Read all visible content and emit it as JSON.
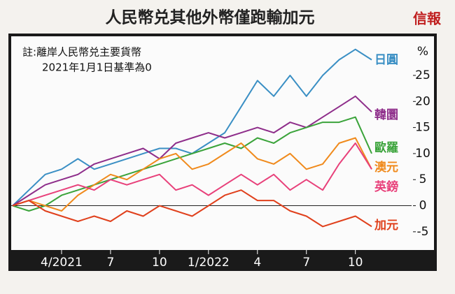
{
  "chart_data": {
    "type": "line",
    "title": "人民幣兑其他外幣僅跑輸加元",
    "logo": "信報",
    "note": [
      "註:離岸人民幣兑主要貨幣",
      "2021年1月1日基準為0"
    ],
    "y_unit": "%",
    "x": [
      "2021-01",
      "2021-02",
      "2021-03",
      "2021-04",
      "2021-05",
      "2021-06",
      "2021-07",
      "2021-08",
      "2021-09",
      "2021-10",
      "2021-11",
      "2021-12",
      "2022-01",
      "2022-02",
      "2022-03",
      "2022-04",
      "2022-05",
      "2022-06",
      "2022-07",
      "2022-08",
      "2022-09",
      "2022-10",
      "2022-11"
    ],
    "xticks": [
      {
        "value": "2021-04",
        "label": "4/2021"
      },
      {
        "value": "2021-07",
        "label": "7"
      },
      {
        "value": "2021-10",
        "label": "10"
      },
      {
        "value": "2022-01",
        "label": "1/2022"
      },
      {
        "value": "2022-04",
        "label": "4"
      },
      {
        "value": "2022-07",
        "label": "7"
      },
      {
        "value": "2022-10",
        "label": "10"
      }
    ],
    "ylim": [
      -8.5,
      32.5
    ],
    "yticks": [
      -5,
      0,
      5,
      10,
      15,
      20,
      25
    ],
    "series": [
      {
        "name": "日圓",
        "color": "#3a8fc4",
        "values": [
          0,
          3,
          6,
          7,
          9,
          7,
          8,
          9,
          10,
          11,
          11,
          10,
          12,
          14,
          19,
          24,
          21,
          25,
          21,
          25,
          28,
          30,
          28
        ]
      },
      {
        "name": "韓圜",
        "color": "#8e2d8a",
        "values": [
          0,
          2,
          4,
          5,
          6,
          8,
          9,
          10,
          11,
          9,
          12,
          13,
          14,
          13,
          14,
          15,
          14,
          16,
          15,
          17,
          19,
          21,
          18
        ]
      },
      {
        "name": "歐羅",
        "color": "#3aa33a",
        "values": [
          0,
          -1,
          0,
          2,
          3,
          4,
          5,
          6,
          7,
          8,
          9,
          10,
          11,
          12,
          11,
          13,
          12,
          14,
          15,
          16,
          16,
          17,
          10
        ]
      },
      {
        "name": "澳元",
        "color": "#f08a1c",
        "values": [
          0,
          1,
          0,
          -1,
          2,
          4,
          6,
          5,
          7,
          9,
          10,
          7,
          8,
          10,
          12,
          9,
          8,
          10,
          7,
          8,
          12,
          13,
          7
        ]
      },
      {
        "name": "英鎊",
        "color": "#e8407a",
        "values": [
          0,
          1,
          2,
          3,
          4,
          3,
          5,
          4,
          5,
          6,
          3,
          4,
          2,
          4,
          6,
          4,
          6,
          3,
          5,
          3,
          8,
          12,
          7
        ]
      },
      {
        "name": "加元",
        "color": "#e0401c",
        "values": [
          0,
          1,
          -1,
          -2,
          -3,
          -2,
          -3,
          -1,
          -2,
          0,
          -1,
          -2,
          0,
          2,
          3,
          1,
          1,
          -1,
          -2,
          -4,
          -3,
          -2,
          -4
        ]
      }
    ]
  }
}
